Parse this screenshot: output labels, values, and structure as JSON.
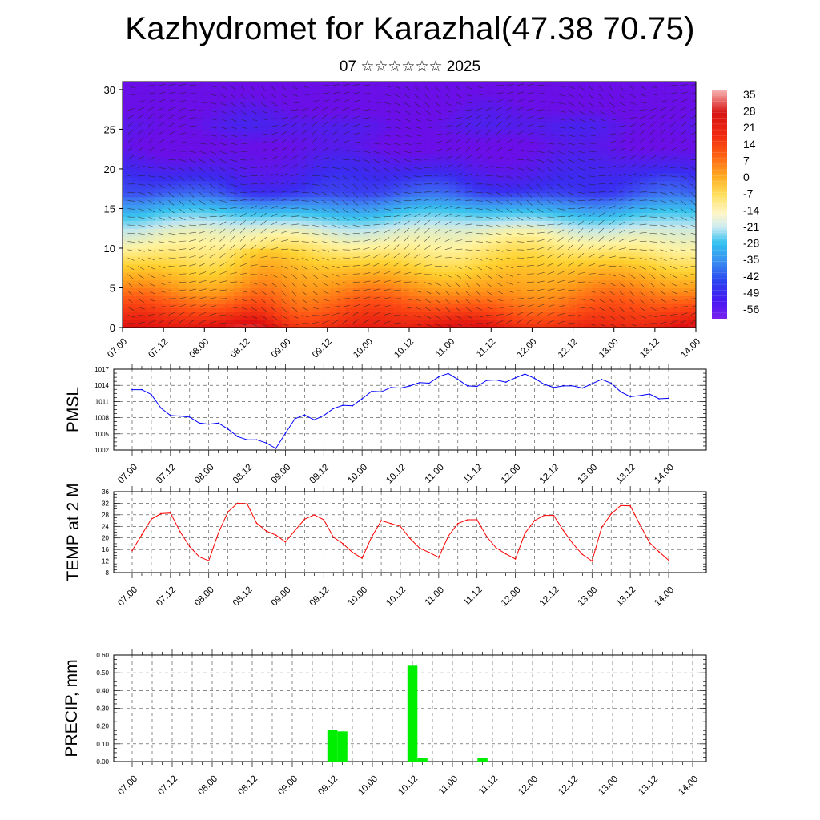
{
  "header": {
    "title": "Kazhydromet for Karazhal(47.38 70.75)",
    "subtitle": "07 ☆☆☆☆☆☆ 2025"
  },
  "time_ticks": [
    "07.00",
    "07.12",
    "08.00",
    "08.12",
    "09.00",
    "09.12",
    "10.00",
    "10.12",
    "11.00",
    "11.12",
    "12.00",
    "12.12",
    "13.00",
    "13.12",
    "14.00"
  ],
  "colorbar": {
    "labels": [
      "35",
      "28",
      "21",
      "14",
      "7",
      "0",
      "-7",
      "-14",
      "-21",
      "-28",
      "-35",
      "-42",
      "-49",
      "-56"
    ]
  },
  "chart_data": [
    {
      "type": "heatmap",
      "title": "",
      "ylabel": "",
      "ylim": [
        0,
        31
      ],
      "yticks": [
        "0",
        "5",
        "10",
        "15",
        "20",
        "25",
        "30"
      ],
      "x": [
        "07.00",
        "07.12",
        "08.00",
        "08.12",
        "09.00",
        "09.12",
        "10.00",
        "10.12",
        "11.00",
        "11.12",
        "12.00",
        "12.12",
        "13.00",
        "13.12",
        "14.00"
      ],
      "overlay": "wind vectors",
      "color_scale": {
        "min": -56,
        "max": 35,
        "colors": [
          "#6a0fe8",
          "#3a2cf0",
          "#3e86f2",
          "#38c4ee",
          "#bfe6f0",
          "#fff3a0",
          "#ffd230",
          "#ff9a1a",
          "#ff4e14",
          "#e01010",
          "#f08a8a"
        ]
      }
    },
    {
      "type": "line",
      "ylabel": "PMSL",
      "ylim": [
        1002,
        1017
      ],
      "yticks": [
        "1002",
        "1005",
        "1008",
        "1011",
        "1014",
        "1017"
      ],
      "color": "#0000ff",
      "x_start": "07.00",
      "x_step_hours": 3,
      "values": [
        1013.2,
        1013.2,
        1012.3,
        1009.8,
        1008.4,
        1008.3,
        1008.1,
        1007.0,
        1006.8,
        1007.0,
        1005.9,
        1004.5,
        1003.9,
        1003.9,
        1003.3,
        1002.3,
        1005.1,
        1007.8,
        1008.5,
        1007.6,
        1008.4,
        1009.7,
        1010.3,
        1010.2,
        1011.5,
        1012.9,
        1012.8,
        1013.6,
        1013.5,
        1013.9,
        1014.5,
        1014.4,
        1015.6,
        1016.2,
        1015.1,
        1013.9,
        1013.8,
        1014.9,
        1015.0,
        1014.6,
        1015.4,
        1016.1,
        1015.3,
        1014.2,
        1013.6,
        1013.9,
        1013.9,
        1013.5,
        1014.3,
        1015.1,
        1014.4,
        1012.8,
        1011.9,
        1012.1,
        1012.4,
        1011.5,
        1011.6
      ]
    },
    {
      "type": "line",
      "ylabel": "TEMP at 2 M",
      "ylim": [
        8,
        36
      ],
      "yticks": [
        "8",
        "12",
        "16",
        "20",
        "24",
        "28",
        "32",
        "36"
      ],
      "color": "#ff0000",
      "x_start": "07.00",
      "x_step_hours": 3,
      "values": [
        15.6,
        21.1,
        26.5,
        28.4,
        28.6,
        22.2,
        17.0,
        13.5,
        12.1,
        21.7,
        29.0,
        32.0,
        31.8,
        25.1,
        22.4,
        21.0,
        18.6,
        22.6,
        26.5,
        28.0,
        26.3,
        20.3,
        18.0,
        15.0,
        13.0,
        20.3,
        26.0,
        25.0,
        24.0,
        19.8,
        16.5,
        15.0,
        13.3,
        20.6,
        25.0,
        26.3,
        26.3,
        20.5,
        16.5,
        14.5,
        12.7,
        21.6,
        26.0,
        27.8,
        27.8,
        22.6,
        18.0,
        14.3,
        12.0,
        23.6,
        28.3,
        31.2,
        31.1,
        24.6,
        18.4,
        15.2,
        12.3
      ]
    },
    {
      "type": "bar",
      "ylabel": "PRECIP, mm",
      "ylim": [
        0,
        0.6
      ],
      "yticks": [
        "0.00",
        "0.10",
        "0.20",
        "0.30",
        "0.40",
        "0.50",
        "0.60"
      ],
      "color": "#00ee00",
      "bars": [
        {
          "x_hours": 60,
          "value": 0.18
        },
        {
          "x_hours": 63,
          "value": 0.17
        },
        {
          "x_hours": 84,
          "value": 0.54
        },
        {
          "x_hours": 87,
          "value": 0.02
        },
        {
          "x_hours": 105,
          "value": 0.02
        }
      ]
    }
  ]
}
